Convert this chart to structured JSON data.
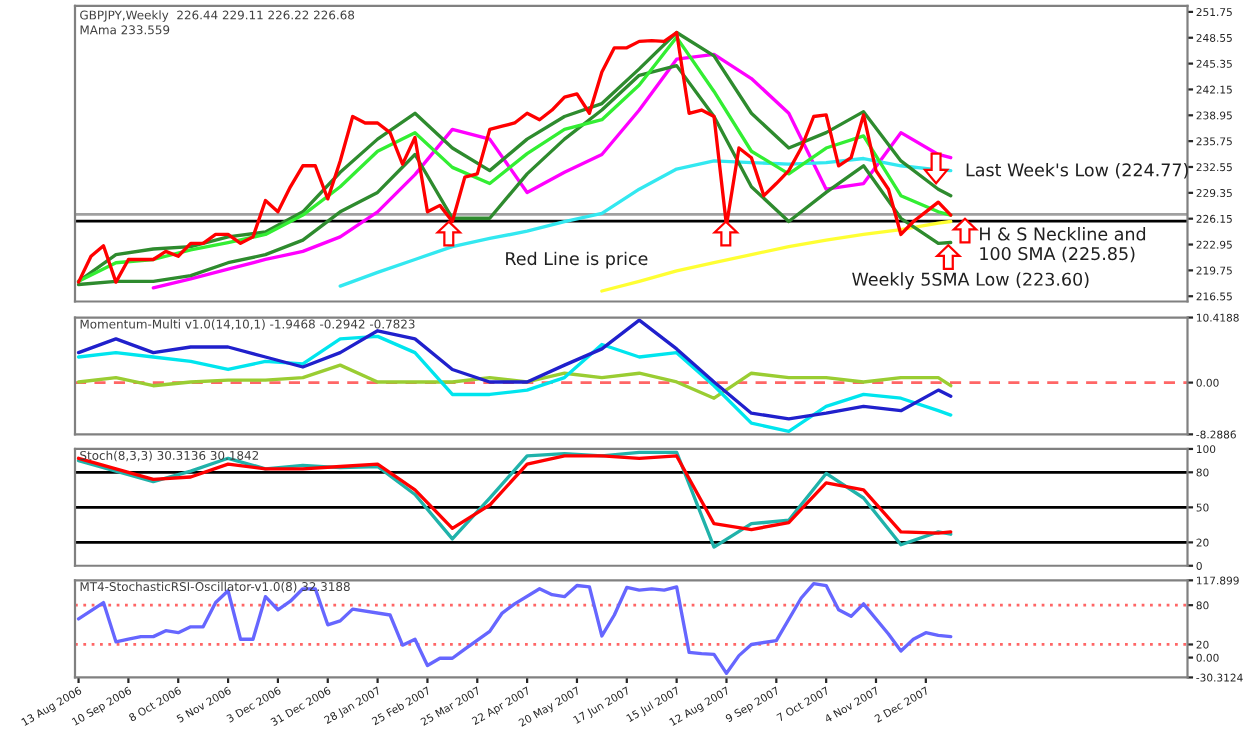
{
  "chart_data": [
    {
      "type": "line",
      "title": "GBPJPY,Weekly  226.44 229.11 226.22 226.68",
      "subtitle": "MAma 233.559",
      "x": [
        "2006-08-13",
        "2006-09-03",
        "2006-09-24",
        "2006-10-15",
        "2006-11-05",
        "2006-11-26",
        "2006-12-17",
        "2007-01-07",
        "2007-01-28",
        "2007-02-18",
        "2007-03-11",
        "2007-04-01",
        "2007-04-22",
        "2007-05-13",
        "2007-06-03",
        "2007-06-24",
        "2007-07-15",
        "2007-08-05",
        "2007-08-26",
        "2007-09-16",
        "2007-10-07",
        "2007-10-28",
        "2007-11-18",
        "2007-12-09",
        "2007-12-16"
      ],
      "series": [
        {
          "color": "#ff00ff",
          "values": [
            null,
            null,
            217.6,
            218.7,
            219.9,
            221.1,
            222.1,
            223.9,
            227.0,
            231.6,
            237.2,
            236.0,
            229.4,
            231.9,
            234.1,
            239.6,
            245.9,
            246.5,
            243.5,
            239.2,
            229.8,
            230.5,
            236.8,
            234.1,
            233.7
          ]
        },
        {
          "color": "#33e8f0",
          "values": [
            null,
            null,
            null,
            null,
            null,
            null,
            null,
            217.8,
            219.5,
            221.1,
            222.7,
            223.7,
            224.6,
            225.8,
            226.8,
            229.8,
            232.3,
            233.3,
            233.1,
            232.9,
            233.1,
            233.6,
            232.7,
            232.2,
            232.1
          ]
        },
        {
          "color": "#ffff33",
          "values": [
            null,
            null,
            null,
            null,
            null,
            null,
            null,
            null,
            null,
            null,
            null,
            null,
            null,
            null,
            217.2,
            218.4,
            219.7,
            220.7,
            221.7,
            222.7,
            223.5,
            224.2,
            224.8,
            225.6,
            225.8
          ]
        },
        {
          "color": "#2e8b2e",
          "values": [
            218.4,
            221.7,
            222.4,
            222.7,
            223.9,
            224.5,
            227.0,
            231.9,
            236.0,
            239.2,
            234.9,
            232.1,
            236.0,
            238.8,
            240.4,
            244.7,
            249.2,
            246.3,
            239.2,
            234.9,
            236.8,
            239.4,
            233.3,
            229.8,
            229.0
          ]
        },
        {
          "color": "#2e8b2e",
          "values": [
            218.0,
            218.4,
            218.4,
            219.1,
            220.7,
            221.7,
            223.5,
            227.0,
            229.4,
            234.1,
            226.2,
            226.2,
            231.7,
            236.0,
            239.6,
            243.9,
            245.1,
            238.8,
            230.1,
            225.8,
            229.4,
            232.7,
            226.2,
            223.1,
            223.2
          ]
        },
        {
          "color": "#33ee33",
          "values": [
            218.4,
            220.7,
            221.1,
            222.3,
            223.2,
            224.2,
            226.6,
            230.1,
            234.5,
            236.8,
            232.5,
            230.5,
            234.2,
            237.2,
            238.4,
            242.7,
            248.6,
            241.9,
            234.5,
            231.7,
            234.9,
            236.4,
            229.0,
            227.0,
            226.6
          ]
        },
        {
          "color": "#ff0000",
          "x": [
            "2006-08-13",
            "2006-08-20",
            "2006-08-27",
            "2006-09-03",
            "2006-09-10",
            "2006-09-17",
            "2006-09-24",
            "2006-10-01",
            "2006-10-08",
            "2006-10-15",
            "2006-10-22",
            "2006-10-29",
            "2006-11-05",
            "2006-11-12",
            "2006-11-19",
            "2006-11-26",
            "2006-12-03",
            "2006-12-10",
            "2006-12-17",
            "2006-12-24",
            "2006-12-31",
            "2007-01-07",
            "2007-01-14",
            "2007-01-21",
            "2007-01-28",
            "2007-02-04",
            "2007-02-11",
            "2007-02-18",
            "2007-02-25",
            "2007-03-04",
            "2007-03-11",
            "2007-03-18",
            "2007-03-25",
            "2007-04-01",
            "2007-04-08",
            "2007-04-15",
            "2007-04-22",
            "2007-04-29",
            "2007-05-06",
            "2007-05-13",
            "2007-05-20",
            "2007-05-27",
            "2007-06-03",
            "2007-06-10",
            "2007-06-17",
            "2007-06-24",
            "2007-07-01",
            "2007-07-08",
            "2007-07-15",
            "2007-07-22",
            "2007-07-29",
            "2007-08-05",
            "2007-08-12",
            "2007-08-19",
            "2007-08-26",
            "2007-09-02",
            "2007-09-09",
            "2007-09-16",
            "2007-09-23",
            "2007-09-30",
            "2007-10-07",
            "2007-10-14",
            "2007-10-21",
            "2007-10-28",
            "2007-11-04",
            "2007-11-11",
            "2007-11-18",
            "2007-11-25",
            "2007-12-02",
            "2007-12-09",
            "2007-12-16"
          ],
          "values": [
            218.3,
            221.5,
            222.8,
            218.3,
            221.1,
            221.1,
            221.1,
            222.1,
            221.5,
            223.1,
            223.1,
            224.2,
            224.2,
            223.1,
            223.9,
            228.4,
            227.0,
            230.1,
            232.7,
            232.7,
            228.6,
            233.3,
            238.8,
            238.0,
            238.0,
            236.8,
            232.9,
            236.2,
            227.0,
            227.8,
            225.8,
            231.3,
            231.7,
            237.2,
            237.6,
            238.0,
            239.2,
            238.4,
            239.6,
            241.2,
            241.6,
            239.2,
            244.3,
            247.3,
            247.3,
            248.1,
            248.2,
            248.1,
            249.2,
            239.2,
            239.6,
            238.8,
            225.3,
            234.9,
            233.7,
            229.0,
            230.5,
            232.1,
            234.9,
            238.8,
            239.0,
            232.7,
            233.7,
            239.0,
            232.1,
            229.8,
            224.2,
            225.8,
            227.0,
            228.2,
            226.6
          ]
        }
      ],
      "ref_lines": [
        {
          "axis": "y",
          "value": 226.68,
          "color": "#a0a0a0",
          "line_style": "solid"
        },
        {
          "axis": "y",
          "value": 225.85,
          "color": "#000000",
          "line_style": "solid"
        }
      ],
      "annotations": [
        "Red Line is price",
        "Last Week's Low (224.77)",
        "H & S Neckline and\n100 SMA (225.85)",
        "Weekly 5SMA Low (223.60)"
      ],
      "xlim": [
        "2006-08-11",
        "2008-04-27"
      ],
      "ylim": [
        215.9,
        252.5
      ],
      "yticks": [
        216.55,
        219.75,
        222.95,
        226.15,
        229.35,
        232.55,
        235.75,
        238.95,
        242.15,
        245.35,
        248.55,
        251.75
      ],
      "tick_labels": "y",
      "grid": false,
      "legend": false,
      "line_style": "solid",
      "marker": "none"
    },
    {
      "type": "line",
      "title": "Momentum-Multi v1.0(14,10,1) -1.9468 -0.2942 -0.7823",
      "x": [
        "2006-08-13",
        "2006-09-03",
        "2006-09-24",
        "2006-10-15",
        "2006-11-05",
        "2006-11-26",
        "2006-12-17",
        "2007-01-07",
        "2007-01-28",
        "2007-02-18",
        "2007-03-11",
        "2007-04-01",
        "2007-04-22",
        "2007-05-13",
        "2007-06-03",
        "2007-06-24",
        "2007-07-15",
        "2007-08-05",
        "2007-08-26",
        "2007-09-16",
        "2007-10-07",
        "2007-10-28",
        "2007-11-18",
        "2007-12-09",
        "2007-12-16"
      ],
      "series": [
        {
          "color": "#9acd32",
          "values": [
            0.1,
            0.8,
            -0.5,
            0.1,
            0.4,
            0.4,
            0.8,
            2.8,
            0.1,
            0.1,
            0.1,
            0.8,
            0.1,
            1.5,
            0.8,
            1.5,
            0.1,
            -2.5,
            1.5,
            0.8,
            0.8,
            0.1,
            0.8,
            0.8,
            -0.5
          ]
        },
        {
          "color": "#00e5ee",
          "values": [
            4.1,
            4.8,
            4.1,
            3.4,
            2.1,
            3.4,
            3.0,
            7.0,
            7.4,
            4.8,
            -1.9,
            -1.9,
            -1.2,
            0.8,
            6.1,
            4.1,
            4.8,
            -0.5,
            -6.5,
            -7.8,
            -3.8,
            -1.9,
            -2.5,
            -4.5,
            -5.2
          ]
        },
        {
          "color": "#2020cc",
          "values": [
            4.8,
            7.0,
            4.8,
            5.7,
            5.7,
            4.1,
            2.5,
            4.8,
            8.3,
            7.0,
            2.1,
            0.1,
            0.1,
            2.8,
            5.4,
            10.0,
            5.4,
            0.1,
            -4.9,
            -5.8,
            -4.9,
            -3.8,
            -4.5,
            -1.2,
            -2.2
          ]
        }
      ],
      "ref_lines": [
        {
          "axis": "y",
          "value": 0,
          "color": "#ff6666",
          "line_style": "dashed"
        }
      ],
      "xlim": [
        "2006-08-11",
        "2008-04-27"
      ],
      "ylim": [
        -8.2886,
        10.4188
      ],
      "yticks": [
        -8.2886,
        {
          "value": 0,
          "label": "0.00"
        },
        10.4188
      ],
      "tick_labels": "y",
      "grid": false,
      "legend": false,
      "line_style": "solid",
      "marker": "none"
    },
    {
      "type": "line",
      "title": "Stoch(8,3,3) 30.3136 30.1842",
      "x": [
        "2006-08-13",
        "2006-09-03",
        "2006-09-24",
        "2006-10-15",
        "2006-11-05",
        "2006-11-26",
        "2006-12-17",
        "2007-01-07",
        "2007-01-28",
        "2007-02-18",
        "2007-03-11",
        "2007-04-01",
        "2007-04-22",
        "2007-05-13",
        "2007-06-03",
        "2007-06-24",
        "2007-07-15",
        "2007-08-05",
        "2007-08-26",
        "2007-09-16",
        "2007-10-07",
        "2007-10-28",
        "2007-11-18",
        "2007-12-09",
        "2007-12-16"
      ],
      "series": [
        {
          "color": "#20b2aa",
          "values": [
            90,
            81,
            72,
            81,
            92,
            83,
            86,
            84,
            85,
            61,
            23,
            58,
            94,
            96,
            94,
            97,
            97,
            16,
            36,
            39,
            79,
            58,
            18,
            29,
            27
          ]
        },
        {
          "color": "#ff0000",
          "values": [
            92,
            83,
            74,
            76,
            87,
            83,
            83,
            85,
            87,
            65,
            32,
            52,
            87,
            94,
            94,
            92,
            94,
            36,
            31,
            37,
            71,
            65,
            29,
            28,
            29
          ]
        }
      ],
      "ref_lines": [
        {
          "axis": "y",
          "value": 80,
          "color": "#000000",
          "line_style": "solid"
        },
        {
          "axis": "y",
          "value": 50,
          "color": "#000000",
          "line_style": "solid"
        },
        {
          "axis": "y",
          "value": 20,
          "color": "#000000",
          "line_style": "solid"
        }
      ],
      "xlim": [
        "2006-08-11",
        "2008-04-27"
      ],
      "ylim": [
        0,
        100
      ],
      "yticks": [
        0,
        20,
        50,
        80,
        100
      ],
      "tick_labels": "y",
      "grid": false,
      "legend": false,
      "line_style": "solid",
      "marker": "none"
    },
    {
      "type": "line",
      "title": "MT4-StochasticRSI-Oscillator-v1.0(8) 32.3188",
      "x": [
        "2006-08-13",
        "2006-08-27",
        "2006-09-03",
        "2006-09-10",
        "2006-09-17",
        "2006-09-24",
        "2006-10-01",
        "2006-10-08",
        "2006-10-15",
        "2006-10-22",
        "2006-10-29",
        "2006-11-05",
        "2006-11-12",
        "2006-11-19",
        "2006-11-26",
        "2006-12-03",
        "2006-12-10",
        "2006-12-17",
        "2006-12-24",
        "2006-12-31",
        "2007-01-07",
        "2007-01-14",
        "2007-02-04",
        "2007-02-11",
        "2007-02-18",
        "2007-02-25",
        "2007-03-04",
        "2007-03-11",
        "2007-03-18",
        "2007-04-01",
        "2007-04-08",
        "2007-04-15",
        "2007-04-29",
        "2007-05-06",
        "2007-05-13",
        "2007-05-20",
        "2007-05-27",
        "2007-06-03",
        "2007-06-10",
        "2007-06-17",
        "2007-06-24",
        "2007-07-01",
        "2007-07-08",
        "2007-07-15",
        "2007-07-22",
        "2007-07-29",
        "2007-08-05",
        "2007-08-12",
        "2007-08-19",
        "2007-08-26",
        "2007-09-09",
        "2007-09-23",
        "2007-09-30",
        "2007-10-07",
        "2007-10-14",
        "2007-10-21",
        "2007-10-28",
        "2007-11-11",
        "2007-11-18",
        "2007-11-25",
        "2007-12-02",
        "2007-12-09",
        "2007-12-16"
      ],
      "series": [
        {
          "color": "#6666ff",
          "values": [
            59,
            84,
            24,
            28,
            32,
            32,
            41,
            38,
            47,
            47,
            84,
            102,
            28,
            28,
            93,
            73,
            86,
            105,
            105,
            50,
            56,
            74,
            65,
            19,
            28,
            -12,
            -1,
            -1,
            13,
            40,
            68,
            82,
            105,
            96,
            93,
            110,
            108,
            33,
            65,
            107,
            103,
            105,
            103,
            108,
            8,
            6,
            5,
            -24,
            3,
            20,
            26,
            91,
            113,
            110,
            73,
            63,
            82,
            36,
            10,
            28,
            38,
            34,
            32
          ]
        }
      ],
      "ref_lines": [
        {
          "axis": "y",
          "value": 80,
          "color": "#ff6666",
          "line_style": "dotted"
        },
        {
          "axis": "y",
          "value": 20,
          "color": "#ff6666",
          "line_style": "dotted"
        }
      ],
      "xlim": [
        "2006-08-11",
        "2008-04-27"
      ],
      "ylim": [
        -30.3124,
        117.899
      ],
      "yticks": [
        -30.3124,
        {
          "value": 0,
          "label": "0.00"
        },
        20,
        80,
        117.899
      ],
      "xticks": [
        {
          "value": "2006-08-13",
          "label": "13 Aug 2006"
        },
        {
          "value": "2006-09-10",
          "label": "10 Sep 2006"
        },
        {
          "value": "2006-10-08",
          "label": "8 Oct 2006"
        },
        {
          "value": "2006-11-05",
          "label": "5 Nov 2006"
        },
        {
          "value": "2006-12-03",
          "label": "3 Dec 2006"
        },
        {
          "value": "2006-12-31",
          "label": "31 Dec 2006"
        },
        {
          "value": "2007-01-28",
          "label": "28 Jan 2007"
        },
        {
          "value": "2007-02-25",
          "label": "25 Feb 2007"
        },
        {
          "value": "2007-03-25",
          "label": "25 Mar 2007"
        },
        {
          "value": "2007-04-22",
          "label": "22 Apr 2007"
        },
        {
          "value": "2007-05-20",
          "label": "20 May 2007"
        },
        {
          "value": "2007-06-17",
          "label": "17 Jun 2007"
        },
        {
          "value": "2007-07-15",
          "label": "15 Jul 2007"
        },
        {
          "value": "2007-08-12",
          "label": "12 Aug 2007"
        },
        {
          "value": "2007-09-09",
          "label": "9 Sep 2007"
        },
        {
          "value": "2007-10-07",
          "label": "7 Oct 2007"
        },
        {
          "value": "2007-11-04",
          "label": "4 Nov 2007"
        },
        {
          "value": "2007-12-02",
          "label": "2 Dec 2007"
        }
      ],
      "grid": false,
      "legend": false,
      "line_style": "solid",
      "marker": "none"
    }
  ]
}
